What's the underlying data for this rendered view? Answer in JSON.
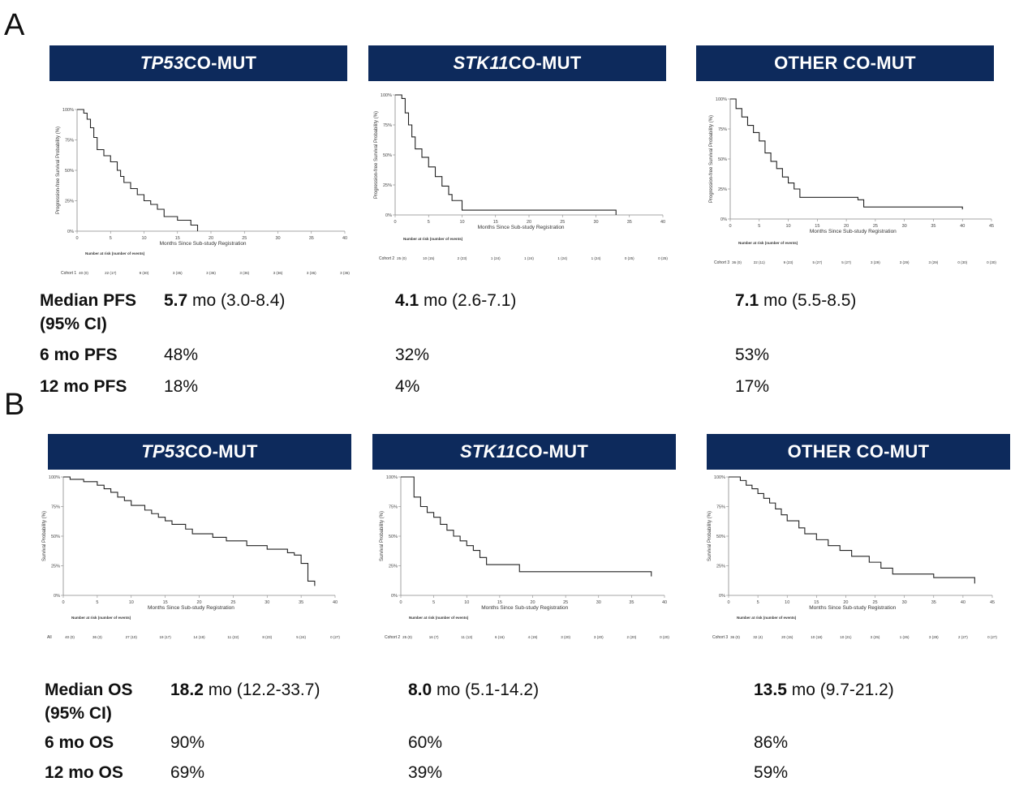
{
  "panels": {
    "A": {
      "letter": "A",
      "stats_rows": [
        {
          "label": "Median PFS",
          "label2": "(95% CI)"
        },
        {
          "label": "6 mo PFS"
        },
        {
          "label": "12 mo PFS"
        }
      ],
      "cohorts": [
        {
          "header_italic": "TP53",
          "header_rest": " CO-MUT",
          "median_bold": "5.7",
          "median_rest": " mo (3.0-8.4)",
          "m6": "48%",
          "m12": "18%"
        },
        {
          "header_italic": "STK11",
          "header_rest": " CO-MUT",
          "median_bold": "4.1",
          "median_rest": " mo (2.6-7.1)",
          "m6": "32%",
          "m12": "4%"
        },
        {
          "header_italic": "",
          "header_rest": "OTHER CO-MUT",
          "median_bold": "7.1",
          "median_rest": " mo (5.5-8.5)",
          "m6": "53%",
          "m12": "17%"
        }
      ]
    },
    "B": {
      "letter": "B",
      "stats_rows": [
        {
          "label": "Median OS",
          "label2": "(95% CI)"
        },
        {
          "label": "6 mo OS"
        },
        {
          "label": "12 mo OS"
        }
      ],
      "cohorts": [
        {
          "header_italic": "TP53",
          "header_rest": " CO-MUT",
          "median_bold": "18.2",
          "median_rest": " mo (12.2-33.7)",
          "m6": "90%",
          "m12": "69%"
        },
        {
          "header_italic": "STK11",
          "header_rest": " CO-MUT",
          "median_bold": "8.0",
          "median_rest": " mo (5.1-14.2)",
          "m6": "60%",
          "m12": "39%"
        },
        {
          "header_italic": "",
          "header_rest": "OTHER CO-MUT",
          "median_bold": "13.5",
          "median_rest": " mo (9.7-21.2)",
          "m6": "86%",
          "m12": "59%"
        }
      ]
    }
  },
  "chart_data": [
    {
      "id": "A1",
      "type": "line",
      "xlabel": "Months Since Sub-study Registration",
      "ylabel": "Progression-free Survival Probability (%)",
      "xlim": [
        0,
        40
      ],
      "ylim": [
        0,
        100
      ],
      "xticks": [
        0,
        5,
        10,
        15,
        20,
        25,
        30,
        35,
        40
      ],
      "yticks": [
        "0%",
        "25%",
        "50%",
        "75%",
        "100%"
      ],
      "risk_title": "Number at risk (number of events)",
      "risk_label": "Cohort 1",
      "risk_values": [
        "40 (0)",
        "22 (17)",
        "9 (30)",
        "3 (35)",
        "3 (36)",
        "3 (36)",
        "3 (36)",
        "3 (36)",
        "3 (36)"
      ],
      "series": [
        {
          "x": [
            0,
            1,
            1.5,
            2,
            2.5,
            3,
            4,
            5,
            6,
            6.5,
            7,
            8,
            9,
            10,
            11,
            12,
            13,
            15,
            17,
            18
          ],
          "y": [
            100,
            97,
            92,
            85,
            77,
            67,
            62,
            57,
            50,
            45,
            40,
            35,
            30,
            25,
            22,
            18,
            12,
            9,
            5,
            0
          ]
        }
      ]
    },
    {
      "id": "A2",
      "type": "line",
      "xlabel": "Months Since Sub-study Registration",
      "ylabel": "Progression-free Survival Probability (%)",
      "xlim": [
        0,
        40
      ],
      "ylim": [
        0,
        100
      ],
      "xticks": [
        0,
        5,
        10,
        15,
        20,
        25,
        30,
        35,
        40
      ],
      "yticks": [
        "0%",
        "25%",
        "50%",
        "75%",
        "100%"
      ],
      "risk_title": "Number at risk (number of events)",
      "risk_label": "Cohort 2",
      "risk_values": [
        "25 (0)",
        "10 (15)",
        "2 (23)",
        "1 (24)",
        "1 (24)",
        "1 (24)",
        "1 (24)",
        "0 (25)",
        "0 (25)"
      ],
      "series": [
        {
          "x": [
            0,
            1,
            1.5,
            2,
            2.5,
            3,
            4,
            5,
            6,
            7,
            8,
            8.5,
            10,
            33
          ],
          "y": [
            100,
            97,
            85,
            75,
            65,
            55,
            48,
            40,
            32,
            24,
            17,
            12,
            4,
            0
          ]
        }
      ]
    },
    {
      "id": "A3",
      "type": "line",
      "xlabel": "Months Since Sub-study Registration",
      "ylabel": "Progression-free Survival Probability (%)",
      "xlim": [
        0,
        45
      ],
      "ylim": [
        0,
        100
      ],
      "xticks": [
        0,
        5,
        10,
        15,
        20,
        25,
        30,
        35,
        40,
        45
      ],
      "yticks": [
        "0%",
        "25%",
        "50%",
        "75%",
        "100%"
      ],
      "risk_title": "Number at risk (number of events)",
      "risk_label": "Cohort 3",
      "risk_values": [
        "36 (0)",
        "22 (11)",
        "9 (23)",
        "5 (27)",
        "5 (27)",
        "3 (29)",
        "3 (29)",
        "3 (29)",
        "0 (30)",
        "0 (30)"
      ],
      "series": [
        {
          "x": [
            0,
            1,
            2,
            3,
            4,
            5,
            6,
            7,
            8,
            9,
            10,
            11,
            12,
            22,
            23,
            40
          ],
          "y": [
            100,
            92,
            85,
            78,
            72,
            65,
            55,
            48,
            42,
            35,
            30,
            25,
            18,
            16,
            10,
            8
          ]
        }
      ]
    },
    {
      "id": "B1",
      "type": "line",
      "xlabel": "Months Since Sub-study Registration",
      "ylabel": "Survival Probability (%)",
      "xlim": [
        0,
        40
      ],
      "ylim": [
        0,
        100
      ],
      "xticks": [
        0,
        5,
        10,
        15,
        20,
        25,
        30,
        35,
        40
      ],
      "yticks": [
        "0%",
        "25%",
        "50%",
        "75%",
        "100%"
      ],
      "risk_title": "Number at risk (number of events)",
      "risk_label": "All",
      "risk_values": [
        "40 (0)",
        "36 (3)",
        "27 (10)",
        "19 (17)",
        "14 (19)",
        "11 (22)",
        "8 (23)",
        "5 (24)",
        "0 (27)"
      ],
      "series": [
        {
          "x": [
            0,
            1,
            3,
            5,
            6,
            7,
            8,
            9,
            10,
            12,
            13,
            14,
            15,
            16,
            18,
            19,
            22,
            24,
            27,
            30,
            33,
            34,
            35,
            36,
            37
          ],
          "y": [
            100,
            98,
            96,
            93,
            90,
            87,
            83,
            80,
            76,
            72,
            69,
            66,
            63,
            60,
            56,
            52,
            49,
            46,
            42,
            39,
            36,
            34,
            27,
            12,
            8
          ]
        }
      ]
    },
    {
      "id": "B2",
      "type": "line",
      "xlabel": "Months Since Sub-study Registration",
      "ylabel": "Survival Probability (%)",
      "xlim": [
        0,
        40
      ],
      "ylim": [
        0,
        100
      ],
      "xticks": [
        0,
        5,
        10,
        15,
        20,
        25,
        30,
        35,
        40
      ],
      "yticks": [
        "0%",
        "25%",
        "50%",
        "75%",
        "100%"
      ],
      "risk_title": "Number at risk (number of events)",
      "risk_label": "Cohort 2",
      "risk_values": [
        "25 (0)",
        "16 (7)",
        "11 (13)",
        "6 (16)",
        "4 (19)",
        "3 (20)",
        "3 (20)",
        "2 (20)",
        "0 (20)"
      ],
      "series": [
        {
          "x": [
            0,
            1,
            2,
            3,
            4,
            5,
            6,
            7,
            8,
            9,
            10,
            11,
            12,
            13,
            18,
            38
          ],
          "y": [
            100,
            100,
            83,
            75,
            70,
            66,
            60,
            55,
            50,
            46,
            42,
            38,
            32,
            26,
            20,
            16
          ]
        }
      ]
    },
    {
      "id": "B3",
      "type": "line",
      "xlabel": "Months Since Sub-study Registration",
      "ylabel": "Survival Probability (%)",
      "xlim": [
        0,
        45
      ],
      "ylim": [
        0,
        100
      ],
      "xticks": [
        0,
        5,
        10,
        15,
        20,
        25,
        30,
        35,
        40,
        45
      ],
      "yticks": [
        "0%",
        "25%",
        "50%",
        "75%",
        "100%"
      ],
      "risk_title": "Number at risk (number of events)",
      "risk_label": "Cohort 3",
      "risk_values": [
        "36 (0)",
        "32 (4)",
        "20 (15)",
        "10 (18)",
        "10 (21)",
        "3 (25)",
        "1 (26)",
        "3 (28)",
        "2 (27)",
        "0 (27)"
      ],
      "series": [
        {
          "x": [
            0,
            2,
            3,
            4,
            5,
            6,
            7,
            8,
            9,
            10,
            12,
            13,
            15,
            17,
            19,
            21,
            24,
            26,
            28,
            35,
            42
          ],
          "y": [
            100,
            97,
            93,
            90,
            86,
            82,
            78,
            73,
            68,
            63,
            57,
            52,
            47,
            42,
            38,
            33,
            28,
            23,
            18,
            15,
            10
          ]
        }
      ]
    }
  ]
}
